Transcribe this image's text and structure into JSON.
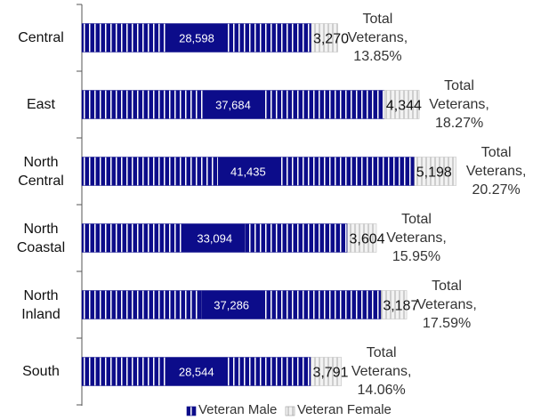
{
  "chart_data": {
    "type": "bar",
    "orientation": "horizontal",
    "stacked": true,
    "categories": [
      "Central",
      "East",
      "North Central",
      "North Coastal",
      "North Inland",
      "South"
    ],
    "series": [
      {
        "name": "Veteran Male",
        "color": "#0c0c8a",
        "values": [
          28598,
          37684,
          41435,
          33094,
          37286,
          28544
        ],
        "value_labels": [
          "28,598",
          "37,684",
          "41,435",
          "33,094",
          "37,286",
          "28,544"
        ]
      },
      {
        "name": "Veteran Female",
        "color": "#d9d9d9",
        "values": [
          3270,
          4344,
          5198,
          3604,
          3187,
          3791
        ],
        "value_labels": [
          "3,270",
          "4,344",
          "5,198",
          "3,604",
          "3,187",
          "3,791"
        ]
      }
    ],
    "annotations": [
      "Total Veterans, 13.85%",
      "Total Veterans, 18.27%",
      "Total Veterans, 20.27%",
      "Total Veterans, 15.95%",
      "Total Veterans, 17.59%",
      "Total Veterans, 14.06%"
    ]
  }
}
